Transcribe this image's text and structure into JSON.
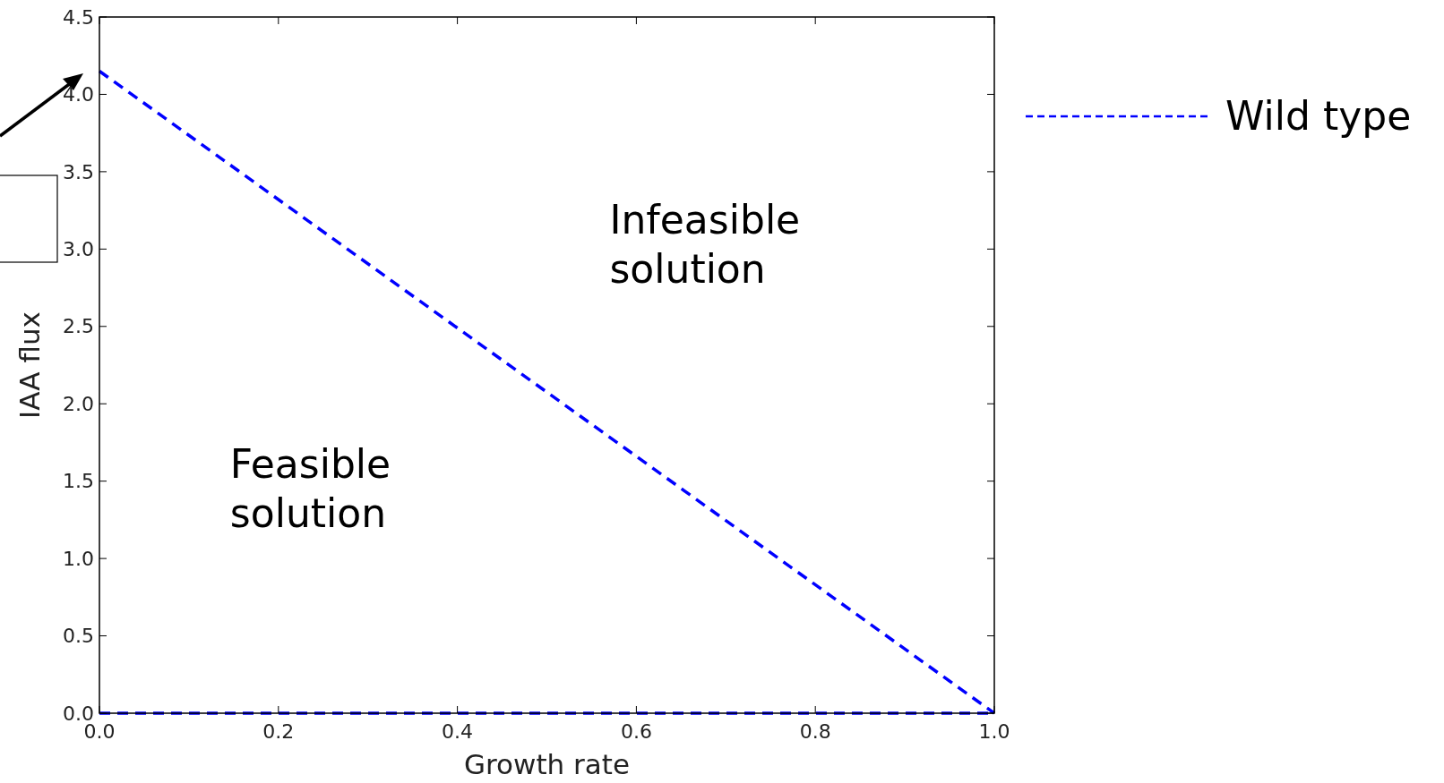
{
  "chart_data": {
    "type": "line",
    "xlabel": "Growth rate",
    "ylabel": "IAA flux",
    "x": [
      0,
      1
    ],
    "series": [
      {
        "name": "Wild type",
        "color": "#0000ff",
        "values": [
          4.15,
          0
        ]
      }
    ],
    "ref_lines": [
      {
        "axis": "y",
        "value": 0,
        "color": "#0000ff",
        "line_style": "dashed"
      }
    ],
    "xlim": [
      0,
      1
    ],
    "ylim": [
      0,
      4.5
    ],
    "xticks": [
      {
        "value": 0,
        "label": "0.0"
      },
      0.2,
      0.4,
      0.6,
      0.8,
      {
        "value": 1,
        "label": "1.0"
      }
    ],
    "yticks": [
      {
        "value": 0,
        "label": "0.0"
      },
      0.5,
      {
        "value": 1,
        "label": "1.0"
      },
      1.5,
      {
        "value": 2,
        "label": "2.0"
      },
      2.5,
      {
        "value": 3,
        "label": "3.0"
      },
      3.5,
      {
        "value": 4,
        "label": "4.0"
      },
      4.5
    ],
    "annotations": [
      "Infeasible\nsolution",
      "Feasible\nsolution"
    ],
    "line_style": "dashed",
    "marker": "none",
    "grid": false,
    "legend": "right"
  }
}
